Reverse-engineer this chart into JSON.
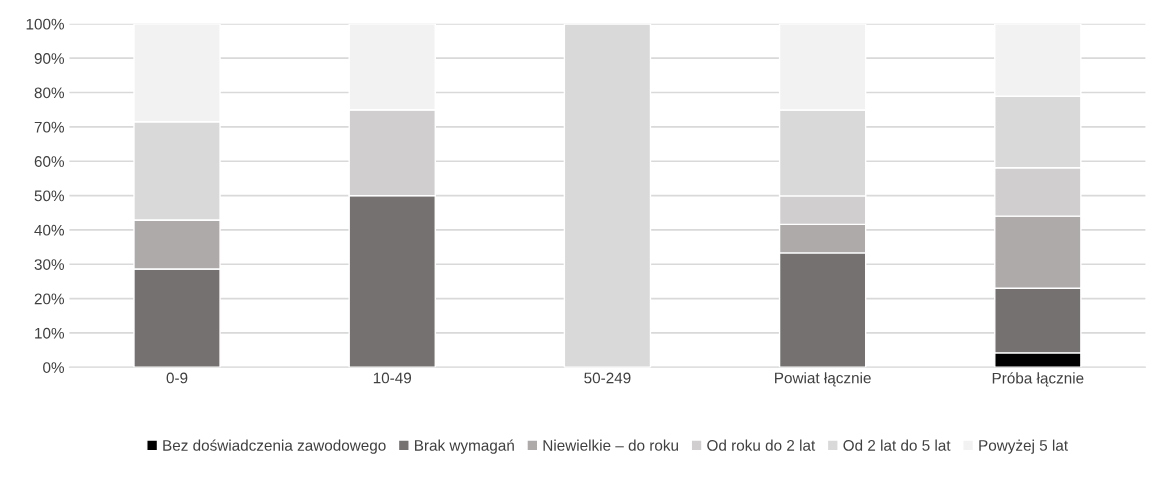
{
  "chart_data": {
    "type": "bar",
    "stacked": true,
    "categories": [
      "0-9",
      "10-49",
      "50-249",
      "Powiat łącznie",
      "Próba łącznie"
    ],
    "series": [
      {
        "name": "Bez doświadczenia zawodowego",
        "color": "#000000",
        "values": [
          0,
          0,
          0,
          0,
          4.2
        ]
      },
      {
        "name": "Brak wymagań",
        "color": "#767171",
        "values": [
          28.6,
          50,
          0,
          33.3,
          18.8
        ]
      },
      {
        "name": "Niewielkie – do roku",
        "color": "#aeaaaa",
        "values": [
          14.3,
          0,
          0,
          8.3,
          21.0
        ]
      },
      {
        "name": "Od roku do 2 lat",
        "color": "#d0cece",
        "values": [
          0,
          25,
          0,
          8.3,
          14.1
        ]
      },
      {
        "name": "Od 2 lat do 5 lat",
        "color": "#d9d9d9",
        "values": [
          28.6,
          0,
          100,
          25,
          20.8
        ]
      },
      {
        "name": "Powyżej 5 lat",
        "color": "#f2f2f2",
        "values": [
          28.5,
          25,
          0,
          25.1,
          21.1
        ]
      }
    ],
    "ylim": [
      0,
      100
    ],
    "yticks": [
      {
        "value": 0,
        "label": "0%"
      },
      {
        "value": 10,
        "label": "10%"
      },
      {
        "value": 20,
        "label": "20%"
      },
      {
        "value": 30,
        "label": "30%"
      },
      {
        "value": 40,
        "label": "40%"
      },
      {
        "value": 50,
        "label": "50%"
      },
      {
        "value": 60,
        "label": "60%"
      },
      {
        "value": 70,
        "label": "70%"
      },
      {
        "value": 80,
        "label": "80%"
      },
      {
        "value": 90,
        "label": "90%"
      },
      {
        "value": 100,
        "label": "100%"
      }
    ],
    "grid": "y",
    "legend": "bottom"
  }
}
